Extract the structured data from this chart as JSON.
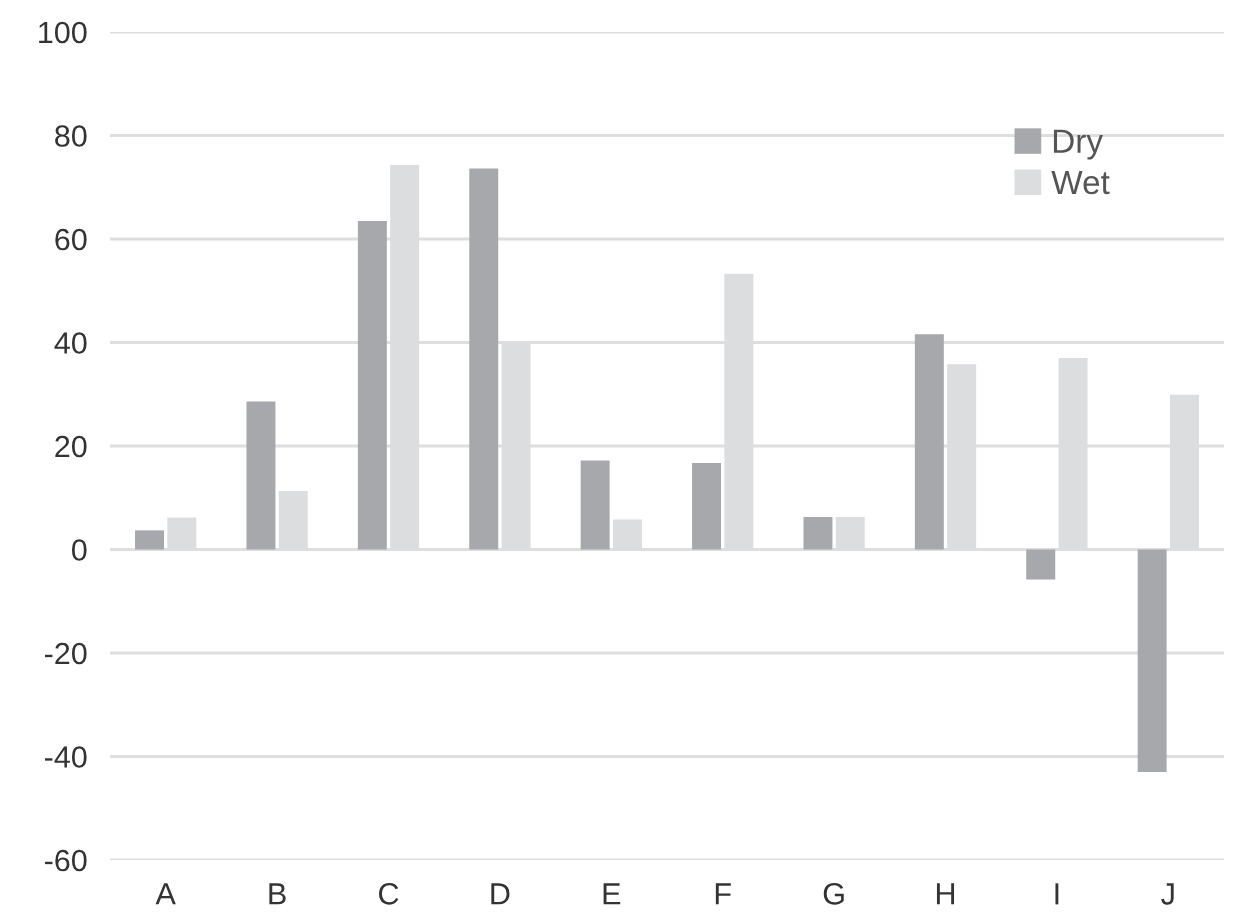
{
  "chart_data": {
    "type": "bar",
    "categories": [
      "A",
      "B",
      "C",
      "D",
      "E",
      "F",
      "G",
      "H",
      "I",
      "J"
    ],
    "series": [
      {
        "name": "Dry",
        "color": "#a7a8ab",
        "values": [
          3.7,
          28.6,
          63.5,
          73.6,
          17.2,
          16.7,
          6.3,
          41.6,
          -5.8,
          -43
        ]
      },
      {
        "name": "Wet",
        "color": "#dcdddf",
        "values": [
          6.2,
          11.3,
          74.3,
          40.2,
          5.8,
          53.3,
          6.3,
          35.8,
          37.0,
          29.9
        ]
      }
    ],
    "ylim": [
      -60,
      100
    ],
    "yticks": [
      -60,
      -40,
      -20,
      0,
      20,
      40,
      60,
      80,
      100
    ],
    "grid": "y",
    "legend": "top right"
  }
}
